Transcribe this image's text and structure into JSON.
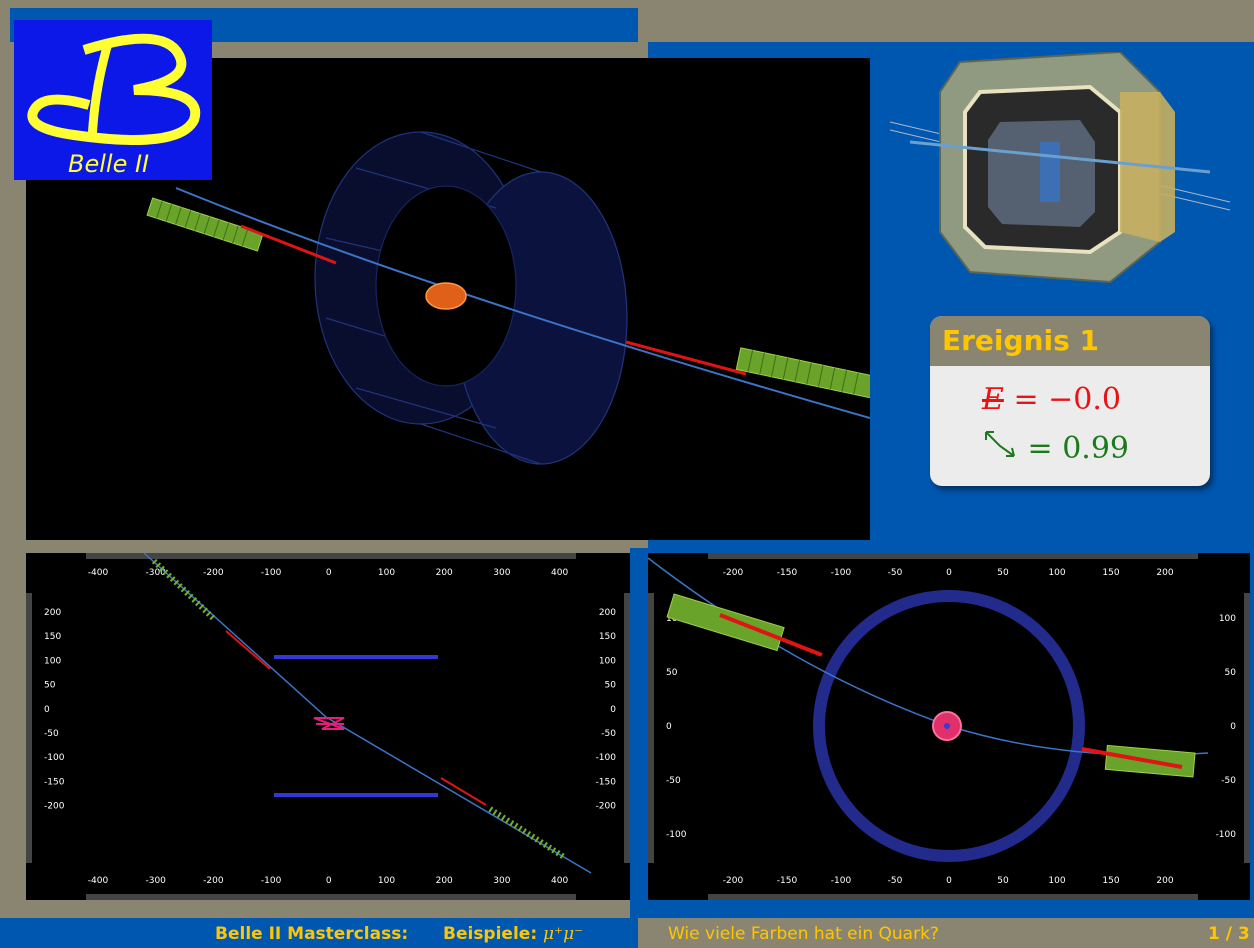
{
  "logo": {
    "text": "Belle II"
  },
  "event_box": {
    "title": "Ereignis 1",
    "energy_symbol": "E",
    "energy_value": "= −0.0",
    "angle_value": "= 0.99"
  },
  "colors": {
    "accent_blue": "#0057b0",
    "frame_gray": "#8a8570",
    "title_yellow": "#ffc600",
    "logo_blue": "#0b18e8",
    "energy_red": "#e81414",
    "angle_green": "#1b7a1b"
  },
  "views": {
    "rz": {
      "x_ticks": [
        "-400",
        "-300",
        "-200",
        "-100",
        "0",
        "100",
        "200",
        "300",
        "400"
      ],
      "y_ticks": [
        "200",
        "150",
        "100",
        "50",
        "0",
        "-50",
        "-100",
        "-150",
        "-200"
      ]
    },
    "xy": {
      "x_ticks": [
        "-200",
        "-150",
        "-100",
        "-50",
        "0",
        "50",
        "100",
        "150",
        "200"
      ],
      "y_ticks": [
        "100",
        "50",
        "0",
        "-50",
        "-100"
      ]
    }
  },
  "footer": {
    "title": "Belle II Masterclass:",
    "examples_label": "Beispiele: ",
    "examples_particles": "μ⁺μ⁻",
    "question": "Wie viele Farben hat ein Quark?",
    "page": "1 / 3"
  }
}
